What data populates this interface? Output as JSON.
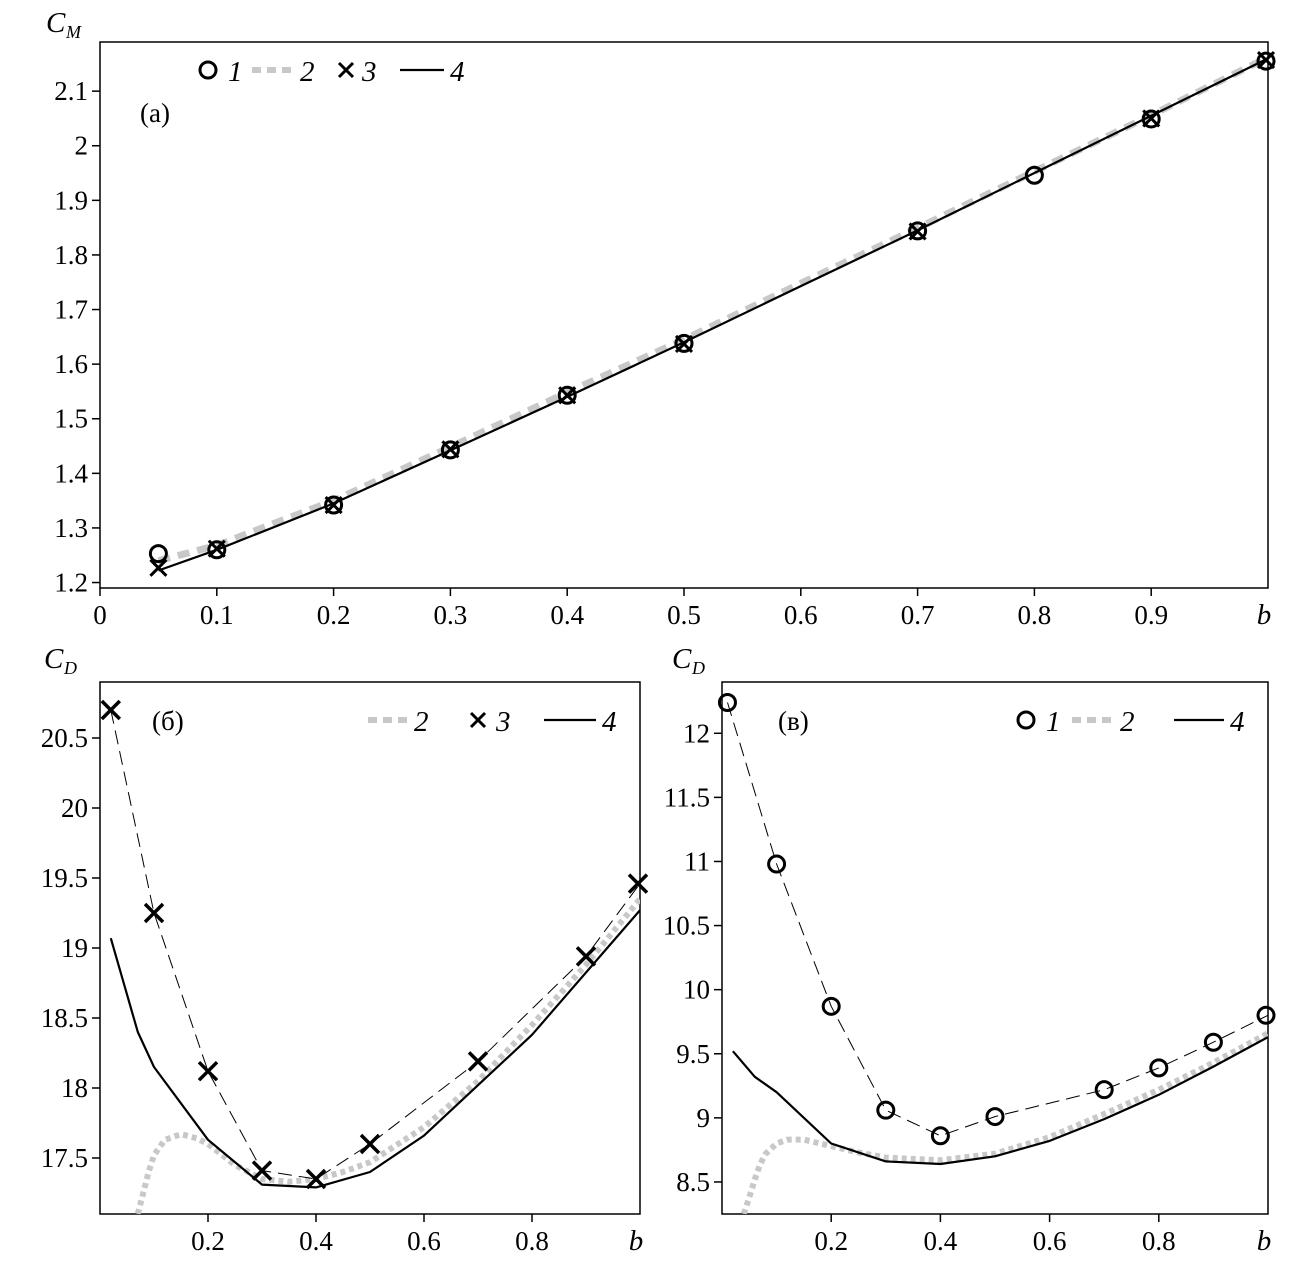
{
  "chart_data": [
    {
      "id": "a",
      "type": "line",
      "panel_label": "(a)",
      "ylabel": "C",
      "ylabel_sub": "M",
      "xlabel": "b",
      "xlim": [
        0,
        1.0
      ],
      "ylim": [
        1.19,
        2.19
      ],
      "xticks": [
        0,
        0.1,
        0.2,
        0.3,
        0.4,
        0.5,
        0.6,
        0.7,
        0.8,
        0.9
      ],
      "xtick_labels": [
        "0",
        "0.1",
        "0.2",
        "0.3",
        "0.4",
        "0.5",
        "0.6",
        "0.7",
        "0.8",
        "0.9"
      ],
      "yticks": [
        1.2,
        1.3,
        1.4,
        1.5,
        1.6,
        1.7,
        1.8,
        1.9,
        2.0,
        2.1
      ],
      "ytick_labels": [
        "1.2",
        "1.3",
        "1.4",
        "1.5",
        "1.6",
        "1.7",
        "1.8",
        "1.9",
        "2",
        "2.1"
      ],
      "legend_position": "top-left",
      "legend": [
        "1",
        "2",
        "3",
        "4"
      ],
      "series": [
        {
          "name": "1",
          "marker": "circle",
          "x": [
            0.05,
            0.1,
            0.2,
            0.3,
            0.4,
            0.5,
            0.7,
            0.8,
            0.9,
            1.0
          ],
          "y": [
            1.253,
            1.26,
            1.342,
            1.443,
            1.543,
            1.638,
            1.844,
            1.946,
            2.049,
            2.155
          ]
        },
        {
          "name": "2",
          "style": "thick-dashed-gray",
          "x": [
            0.05,
            0.1,
            0.2,
            0.3,
            0.4,
            0.5,
            0.6,
            0.7,
            0.8,
            0.9,
            1.0
          ],
          "y": [
            1.24,
            1.268,
            1.35,
            1.448,
            1.548,
            1.645,
            1.748,
            1.849,
            1.953,
            2.056,
            2.162
          ]
        },
        {
          "name": "3",
          "marker": "x",
          "x": [
            0.05,
            0.1,
            0.2,
            0.3,
            0.4,
            0.5,
            0.7,
            0.9,
            1.0
          ],
          "y": [
            1.227,
            1.262,
            1.342,
            1.444,
            1.543,
            1.637,
            1.843,
            2.05,
            2.157
          ]
        },
        {
          "name": "4",
          "style": "solid-black",
          "x": [
            0.05,
            0.1,
            0.2,
            0.3,
            0.4,
            0.5,
            0.6,
            0.7,
            0.8,
            0.9,
            1.0
          ],
          "y": [
            1.222,
            1.26,
            1.345,
            1.442,
            1.54,
            1.64,
            1.743,
            1.845,
            1.95,
            2.055,
            2.16
          ]
        }
      ]
    },
    {
      "id": "b",
      "type": "line",
      "panel_label": "(б)",
      "ylabel": "C",
      "ylabel_sub": "D",
      "xlabel": "b",
      "xlim": [
        0.0,
        1.0
      ],
      "ylim": [
        17.1,
        20.9
      ],
      "xticks": [
        0.2,
        0.4,
        0.6,
        0.8
      ],
      "xtick_labels": [
        "0.2",
        "0.4",
        "0.6",
        "0.8"
      ],
      "yticks": [
        17.5,
        18,
        18.5,
        19,
        19.5,
        20,
        20.5
      ],
      "ytick_labels": [
        "17.5",
        "18",
        "18.5",
        "19",
        "19.5",
        "20",
        "20.5"
      ],
      "legend_position": "top-right",
      "legend": [
        "2",
        "3",
        "4"
      ],
      "series": [
        {
          "name": "2",
          "style": "thick-dotted-gray",
          "x": [
            0.07,
            0.08,
            0.09,
            0.1,
            0.12,
            0.15,
            0.18,
            0.2,
            0.25,
            0.3,
            0.35,
            0.4,
            0.45,
            0.5,
            0.6,
            0.7,
            0.8,
            0.9,
            1.0
          ],
          "y": [
            17.1,
            17.25,
            17.4,
            17.52,
            17.63,
            17.67,
            17.64,
            17.6,
            17.45,
            17.35,
            17.33,
            17.35,
            17.4,
            17.47,
            17.72,
            18.05,
            18.45,
            18.88,
            19.35
          ]
        },
        {
          "name": "3",
          "marker": "x",
          "x": [
            0.02,
            0.1,
            0.2,
            0.3,
            0.4,
            0.5,
            0.7,
            0.9,
            1.0
          ],
          "y": [
            20.7,
            19.25,
            18.12,
            17.41,
            17.35,
            17.6,
            18.19,
            18.94,
            19.46
          ]
        },
        {
          "name": "3",
          "style": "thin-dashed-black",
          "x": [
            0.02,
            0.1,
            0.2,
            0.3,
            0.4,
            0.5,
            0.7,
            0.9,
            1.0
          ],
          "y": [
            20.7,
            19.25,
            18.12,
            17.41,
            17.35,
            17.6,
            18.19,
            18.94,
            19.46
          ]
        },
        {
          "name": "4",
          "style": "solid-black",
          "x": [
            0.02,
            0.07,
            0.1,
            0.2,
            0.3,
            0.4,
            0.5,
            0.6,
            0.8,
            1.0
          ],
          "y": [
            19.07,
            18.4,
            18.15,
            17.63,
            17.31,
            17.29,
            17.4,
            17.66,
            18.38,
            19.27
          ]
        }
      ]
    },
    {
      "id": "c",
      "type": "line",
      "panel_label": "(в)",
      "ylabel": "C",
      "ylabel_sub": "D",
      "xlabel": "b",
      "xlim": [
        0.0,
        1.0
      ],
      "ylim": [
        8.25,
        12.4
      ],
      "xticks": [
        0.2,
        0.4,
        0.6,
        0.8
      ],
      "xtick_labels": [
        "0.2",
        "0.4",
        "0.6",
        "0.8"
      ],
      "yticks": [
        8.5,
        9,
        9.5,
        10,
        10.5,
        11,
        11.5,
        12
      ],
      "ytick_labels": [
        "8.5",
        "9",
        "9.5",
        "10",
        "10.5",
        "11",
        "11.5",
        "12"
      ],
      "legend_position": "top-right",
      "legend": [
        "1",
        "2",
        "4"
      ],
      "series": [
        {
          "name": "1",
          "marker": "circle",
          "x": [
            0.01,
            0.1,
            0.2,
            0.3,
            0.4,
            0.5,
            0.7,
            0.8,
            0.9,
            1.0
          ],
          "y": [
            12.24,
            10.98,
            9.87,
            9.06,
            8.86,
            9.01,
            9.22,
            9.39,
            9.59,
            9.8
          ]
        },
        {
          "name": "1",
          "style": "thin-dashed-black",
          "x": [
            0.01,
            0.1,
            0.2,
            0.3,
            0.4,
            0.5,
            0.7,
            0.8,
            0.9,
            1.0
          ],
          "y": [
            12.24,
            10.98,
            9.87,
            9.06,
            8.86,
            9.01,
            9.22,
            9.39,
            9.59,
            9.8
          ]
        },
        {
          "name": "2",
          "style": "thick-dotted-gray",
          "x": [
            0.04,
            0.05,
            0.06,
            0.07,
            0.08,
            0.1,
            0.12,
            0.15,
            0.2,
            0.25,
            0.3,
            0.4,
            0.5,
            0.6,
            0.7,
            0.8,
            0.9,
            1.0
          ],
          "y": [
            8.25,
            8.38,
            8.52,
            8.64,
            8.72,
            8.8,
            8.83,
            8.83,
            8.78,
            8.73,
            8.69,
            8.67,
            8.72,
            8.85,
            9.03,
            9.22,
            9.43,
            9.66
          ]
        },
        {
          "name": "4",
          "style": "solid-black",
          "x": [
            0.02,
            0.06,
            0.1,
            0.2,
            0.3,
            0.4,
            0.5,
            0.6,
            0.7,
            0.8,
            0.9,
            1.0
          ],
          "y": [
            9.52,
            9.32,
            9.2,
            8.8,
            8.66,
            8.64,
            8.7,
            8.82,
            8.99,
            9.18,
            9.4,
            9.63
          ]
        }
      ]
    }
  ]
}
